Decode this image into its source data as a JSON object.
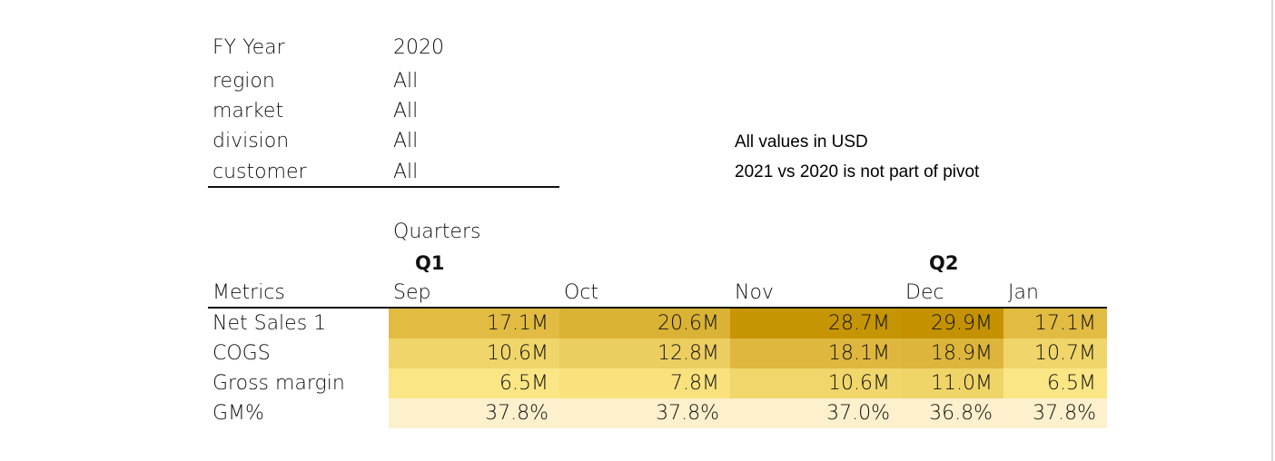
{
  "filters": [
    {
      "label": "FY Year",
      "value": "2020"
    },
    {
      "label": "region",
      "value": "All"
    },
    {
      "label": "market",
      "value": "All"
    },
    {
      "label": "division",
      "value": "All"
    },
    {
      "label": "customer",
      "value": "All"
    }
  ],
  "notes": {
    "line1": "All values in USD",
    "line2": "2021 vs 2020 is not part of pivot"
  },
  "pivot": {
    "quarters_label": "Quarters",
    "quarter_q1": "Q1",
    "quarter_q2": "Q2",
    "metrics_header": "Metrics",
    "months": [
      "Sep",
      "Oct",
      "Nov",
      "Dec",
      "Jan"
    ],
    "rows": [
      {
        "label": "Net Sales 1",
        "values": [
          "17.1M",
          "20.6M",
          "28.7M",
          "29.9M",
          "17.1M"
        ],
        "colors": [
          "#e1bb42",
          "#dab234",
          "#c69504",
          "#c49201",
          "#e1bb42"
        ]
      },
      {
        "label": "COGS",
        "values": [
          "10.6M",
          "12.8M",
          "18.1M",
          "18.9M",
          "10.7M"
        ],
        "colors": [
          "#f0d56a",
          "#ecce60",
          "#dfb73f",
          "#ddb53b",
          "#f0d56a"
        ]
      },
      {
        "label": "Gross margin",
        "values": [
          "6.5M",
          "7.8M",
          "10.6M",
          "11.0M",
          "6.5M"
        ],
        "colors": [
          "#fbe685",
          "#f9e27d",
          "#f0d66b",
          "#efd468",
          "#fbe685"
        ]
      },
      {
        "label": "GM%",
        "values": [
          "37.8%",
          "37.8%",
          "37.0%",
          "36.8%",
          "37.8%"
        ],
        "colors": [
          "#fdf0cc",
          "#fdf0cc",
          "#fdf0cc",
          "#fdf0cc",
          "#fdf0cc"
        ]
      }
    ]
  }
}
